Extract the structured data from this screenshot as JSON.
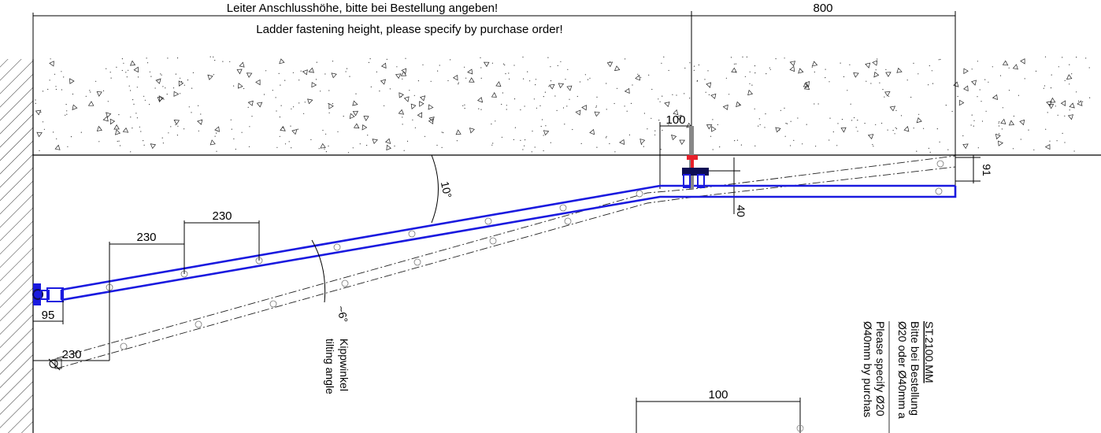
{
  "drawing": {
    "height_label_de": "Leiter Anschlusshöhe, bitte bei Bestellung angeben!",
    "height_label_en": "Ladder fastening height, please specify by purchase order!",
    "dim_800": "800",
    "dim_100_top": "100",
    "dim_91": "91",
    "dim_40": "40",
    "angle_10": "10°",
    "dim_230_upper": "230",
    "dim_230_lower": "230",
    "dim_95": "95",
    "angle_6": "~6°",
    "dim_230_bottom": "230",
    "tilt_de": "Kippwinkel",
    "tilt_en": "tilting angle",
    "dim_100_bottom": "100",
    "note_code": "ST.2100.MM",
    "note_line1": "Bitte bei Bestellung",
    "note_line2": "Ø20 oder Ø40mm a",
    "note_line3": "Please specify Ø20",
    "note_line4": "Ø40mm by purchas"
  },
  "colors": {
    "rail": "#1a1adf",
    "bracket_red": "#e8202a",
    "bracket_navy": "#0d0d55"
  }
}
